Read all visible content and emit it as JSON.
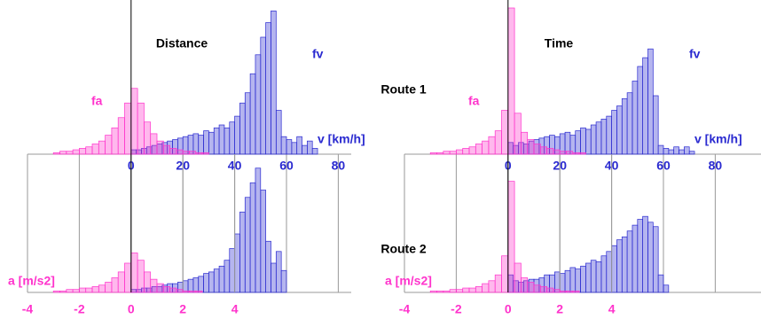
{
  "route_labels": [
    "Route 1",
    "Route 2"
  ],
  "chart_data": [
    {
      "type": "histogram",
      "title": "Distance",
      "ylim": [
        0,
        100
      ],
      "series": [
        {
          "name": "fv",
          "color": "#2a2ad0",
          "label": "v [km/h]",
          "xlim": [
            -40,
            85
          ],
          "xticks": [
            0,
            20,
            40,
            60,
            80
          ],
          "bins": [
            0,
            2,
            4,
            6,
            8,
            10,
            12,
            14,
            16,
            18,
            20,
            22,
            24,
            26,
            28,
            30,
            32,
            34,
            36,
            38,
            40,
            42,
            44,
            46,
            48,
            50,
            52,
            54,
            56,
            58,
            60,
            62,
            64,
            66,
            68,
            70,
            72
          ],
          "values": [
            [
              3,
              3,
              4,
              5,
              6,
              7,
              8,
              9,
              10,
              11,
              12,
              13,
              14,
              13,
              16,
              15,
              18,
              20,
              18,
              22,
              26,
              35,
              42,
              55,
              68,
              80,
              90,
              98,
              30,
              12,
              10,
              8,
              12,
              6,
              9,
              4
            ],
            [
              2,
              2,
              3,
              3,
              4,
              4,
              5,
              6,
              6,
              7,
              8,
              9,
              10,
              11,
              13,
              14,
              16,
              18,
              22,
              30,
              40,
              55,
              65,
              75,
              85,
              70,
              35,
              20,
              28,
              15,
              0,
              0,
              0,
              0,
              0,
              0
            ]
          ]
        },
        {
          "name": "fa",
          "color": "#ff33cc",
          "label": "a [m/s2]",
          "xlim": [
            -4,
            8.5
          ],
          "xticks": [
            -4,
            -2,
            0,
            2,
            4
          ],
          "bins": [
            -3,
            -2.75,
            -2.5,
            -2.25,
            -2,
            -1.75,
            -1.5,
            -1.25,
            -1,
            -0.75,
            -0.5,
            -0.25,
            0,
            0.25,
            0.5,
            0.75,
            1,
            1.25,
            1.5,
            1.75,
            2,
            2.25,
            2.5,
            2.75,
            3
          ],
          "values": [
            [
              1,
              2,
              2,
              3,
              4,
              5,
              7,
              9,
              13,
              18,
              25,
              35,
              45,
              35,
              22,
              14,
              9,
              6,
              4,
              3,
              2,
              2,
              1,
              1
            ],
            [
              1,
              1,
              2,
              2,
              3,
              3,
              4,
              5,
              7,
              10,
              14,
              20,
              27,
              22,
              14,
              9,
              6,
              4,
              3,
              2,
              1,
              1,
              1,
              0
            ]
          ]
        }
      ]
    },
    {
      "type": "histogram",
      "title": "Time",
      "ylim": [
        0,
        100
      ],
      "series": [
        {
          "name": "fv",
          "color": "#2a2ad0",
          "label": "v [km/h]",
          "xlim": [
            -40,
            85
          ],
          "xticks": [
            0,
            20,
            40,
            60,
            80
          ],
          "bins": [
            0,
            2,
            4,
            6,
            8,
            10,
            12,
            14,
            16,
            18,
            20,
            22,
            24,
            26,
            28,
            30,
            32,
            34,
            36,
            38,
            40,
            42,
            44,
            46,
            48,
            50,
            52,
            54,
            56,
            58,
            60,
            62,
            64,
            66,
            68,
            70,
            72
          ],
          "values": [
            [
              8,
              6,
              8,
              7,
              9,
              10,
              11,
              12,
              13,
              12,
              14,
              15,
              13,
              16,
              18,
              17,
              20,
              22,
              24,
              26,
              30,
              33,
              38,
              42,
              50,
              60,
              66,
              72,
              40,
              6,
              4,
              3,
              5,
              3,
              5,
              2
            ],
            [
              12,
              8,
              7,
              8,
              9,
              9,
              10,
              12,
              12,
              14,
              13,
              15,
              17,
              16,
              18,
              20,
              22,
              21,
              25,
              28,
              32,
              36,
              38,
              42,
              46,
              50,
              52,
              48,
              45,
              12,
              5,
              0,
              0,
              0,
              0,
              0
            ]
          ]
        },
        {
          "name": "fa",
          "color": "#ff33cc",
          "label": "a [m/s2]",
          "xlim": [
            -4,
            8.5
          ],
          "xticks": [
            -4,
            -2,
            0,
            2,
            4
          ],
          "bins": [
            -3,
            -2.75,
            -2.5,
            -2.25,
            -2,
            -1.75,
            -1.5,
            -1.25,
            -1,
            -0.75,
            -0.5,
            -0.25,
            0,
            0.25,
            0.5,
            0.75,
            1,
            1.25,
            1.5,
            1.75,
            2,
            2.25,
            2.5,
            2.75,
            3
          ],
          "values": [
            [
              1,
              1,
              2,
              2,
              3,
              4,
              5,
              7,
              9,
              12,
              16,
              30,
              100,
              28,
              15,
              10,
              7,
              5,
              4,
              3,
              2,
              2,
              1,
              1
            ],
            [
              1,
              1,
              1,
              2,
              2,
              3,
              3,
              4,
              6,
              8,
              12,
              25,
              76,
              20,
              10,
              7,
              5,
              4,
              3,
              2,
              1,
              1,
              1,
              0
            ]
          ]
        }
      ]
    }
  ]
}
